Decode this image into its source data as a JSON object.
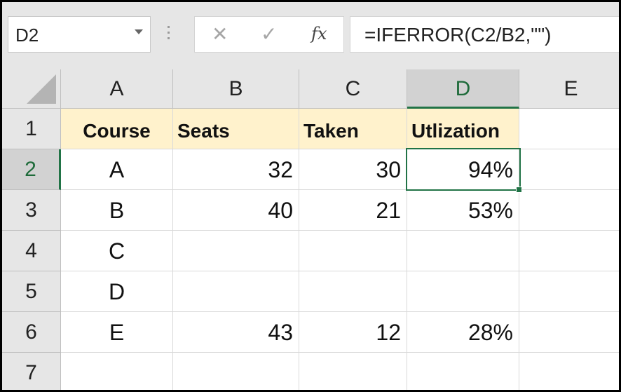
{
  "name_box": {
    "value": "D2"
  },
  "formula_bar": {
    "cancel_symbol": "✕",
    "enter_symbol": "✓",
    "fx_label": "fx",
    "formula": "=IFERROR(C2/B2,\"\")"
  },
  "columns": [
    "A",
    "B",
    "C",
    "D",
    "E"
  ],
  "rows": [
    "1",
    "2",
    "3",
    "4",
    "5",
    "6",
    "7"
  ],
  "selected": {
    "column": "D",
    "row": "2"
  },
  "cells": {
    "r1": {
      "a": "Course",
      "b": "Seats",
      "c": "Taken",
      "d": "Utlization",
      "e": ""
    },
    "r2": {
      "a": "A",
      "b": "32",
      "c": "30",
      "d": "94%",
      "e": ""
    },
    "r3": {
      "a": "B",
      "b": "40",
      "c": "21",
      "d": "53%",
      "e": ""
    },
    "r4": {
      "a": "C",
      "b": "",
      "c": "",
      "d": "",
      "e": ""
    },
    "r5": {
      "a": "D",
      "b": "",
      "c": "",
      "d": "",
      "e": ""
    },
    "r6": {
      "a": "E",
      "b": "43",
      "c": "12",
      "d": "28%",
      "e": ""
    },
    "r7": {
      "a": "",
      "b": "",
      "c": "",
      "d": "",
      "e": ""
    }
  },
  "colors": {
    "header_fill": "#fff2cc",
    "selection": "#217346",
    "chrome": "#e6e6e6"
  }
}
